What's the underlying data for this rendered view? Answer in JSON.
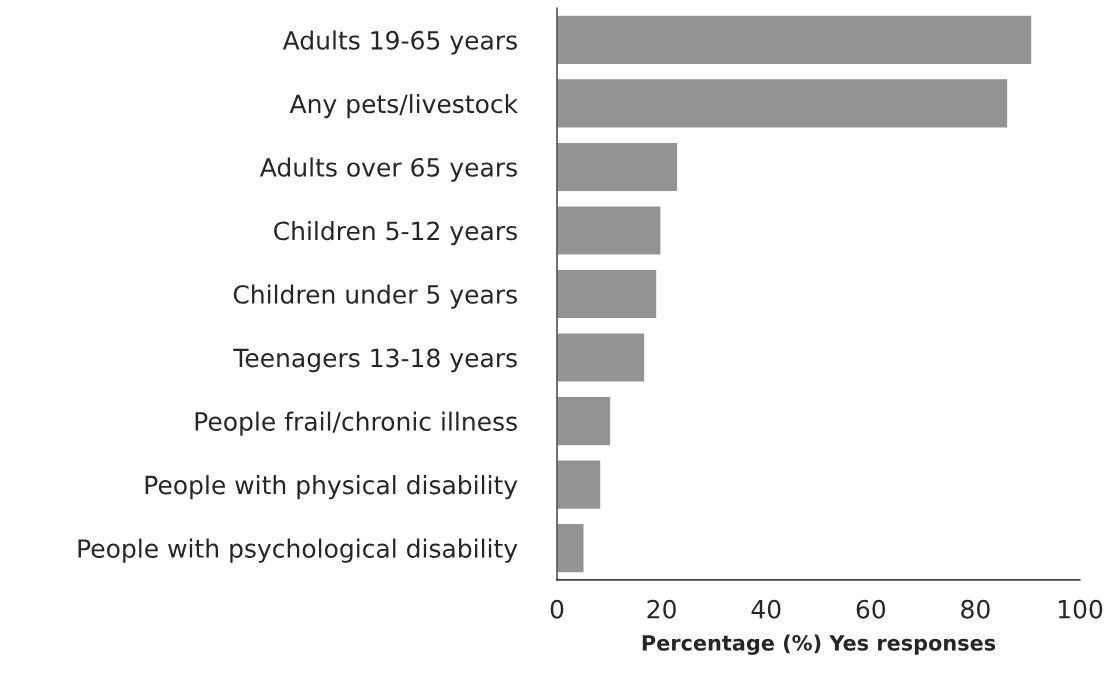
{
  "chart_data": {
    "type": "bar",
    "orientation": "horizontal",
    "xlabel": "Percentage (%) Yes responses",
    "categories": [
      "Adults 19-65 years",
      "Any pets/livestock",
      "Adults over 65 years",
      "Children 5-12 years",
      "Children under 5 years",
      "Teenagers 13-18 years",
      "People frail/chronic illness",
      "People with physical disability",
      "People with psychological disability"
    ],
    "values": [
      90.8,
      86.2,
      23.1,
      19.9,
      19.1,
      16.8,
      10.3,
      8.4,
      5.2
    ],
    "color": "#939393",
    "xlim": [
      0,
      100
    ],
    "xticks": [
      0,
      20,
      40,
      60,
      80,
      100
    ],
    "grid": false,
    "legend": false
  }
}
